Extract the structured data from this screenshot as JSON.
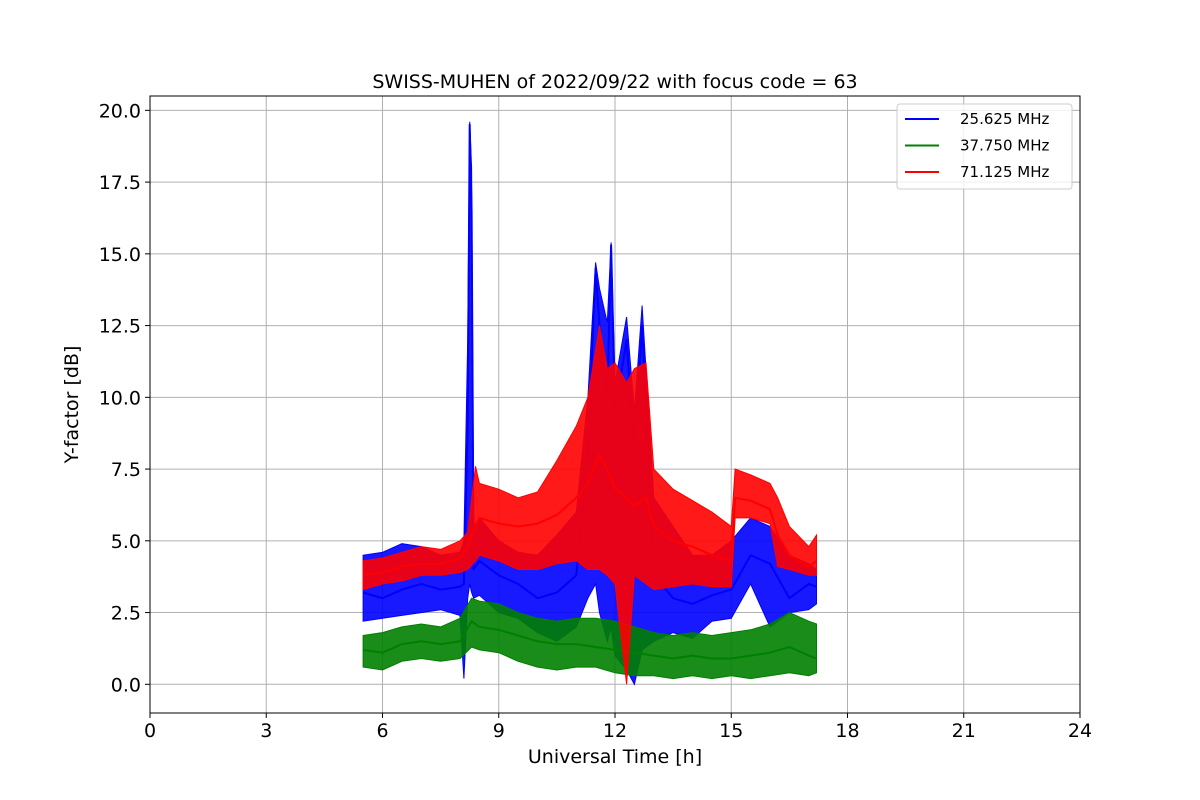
{
  "chart_data": {
    "type": "line",
    "title": "SWISS-MUHEN of 2022/09/22 with focus code = 63",
    "xlabel": "Universal Time [h]",
    "ylabel": "Y-factor [dB]",
    "xlim": [
      0,
      24
    ],
    "ylim": [
      -1,
      20.5
    ],
    "xticks": [
      0,
      3,
      6,
      9,
      12,
      15,
      18,
      21,
      24
    ],
    "xtick_labels": [
      "0",
      "3",
      "6",
      "9",
      "12",
      "15",
      "18",
      "21",
      "24"
    ],
    "yticks": [
      0.0,
      2.5,
      5.0,
      7.5,
      10.0,
      12.5,
      15.0,
      17.5,
      20.0
    ],
    "ytick_labels": [
      "0.0",
      "2.5",
      "5.0",
      "7.5",
      "10.0",
      "12.5",
      "15.0",
      "17.5",
      "20.0"
    ],
    "grid": true,
    "legend_position": "top-right",
    "series": [
      {
        "name": "25.625 MHz",
        "color": "#0000ff",
        "x": [
          5.5,
          6.0,
          6.5,
          7.0,
          7.5,
          8.0,
          8.1,
          8.2,
          8.25,
          8.3,
          8.35,
          8.5,
          9.0,
          9.5,
          10.0,
          10.5,
          11.0,
          11.3,
          11.5,
          11.6,
          11.8,
          11.9,
          12.0,
          12.3,
          12.5,
          12.7,
          13.0,
          13.5,
          14.0,
          14.5,
          15.0,
          15.5,
          16.0,
          16.5,
          17.0,
          17.2
        ],
        "y": [
          3.2,
          3.0,
          3.3,
          3.5,
          3.3,
          3.4,
          3.5,
          9.0,
          19.5,
          16.5,
          4.0,
          4.3,
          3.8,
          3.5,
          3.0,
          3.2,
          3.8,
          8.0,
          14.5,
          12.5,
          10.0,
          15.3,
          9.5,
          12.0,
          8.0,
          12.5,
          3.8,
          3.0,
          2.8,
          3.1,
          3.3,
          4.5,
          4.2,
          3.0,
          3.5,
          3.4
        ],
        "y_min": [
          2.2,
          2.3,
          2.4,
          2.5,
          2.6,
          2.4,
          0.2,
          3.0,
          3.5,
          3.2,
          3.0,
          3.1,
          2.5,
          2.3,
          1.8,
          1.5,
          2.0,
          3.0,
          3.5,
          2.5,
          1.5,
          2.0,
          1.0,
          0.5,
          0.0,
          1.2,
          1.5,
          1.8,
          1.6,
          2.2,
          2.3,
          3.5,
          2.0,
          2.5,
          2.6,
          2.8
        ],
        "y_max": [
          4.5,
          4.6,
          4.9,
          4.8,
          4.5,
          4.6,
          5.0,
          12.0,
          19.6,
          18.0,
          5.5,
          5.8,
          5.0,
          4.6,
          4.5,
          5.2,
          6.0,
          10.0,
          14.7,
          13.8,
          12.6,
          15.4,
          10.5,
          12.8,
          9.5,
          13.2,
          6.5,
          5.5,
          4.5,
          4.5,
          5.0,
          5.8,
          5.5,
          4.5,
          4.2,
          4.0
        ]
      },
      {
        "name": "37.750 MHz",
        "color": "#008000",
        "x": [
          5.5,
          6.0,
          6.5,
          7.0,
          7.5,
          8.0,
          8.3,
          8.5,
          9.0,
          9.5,
          10.0,
          10.5,
          11.0,
          11.5,
          12.0,
          12.5,
          13.0,
          13.5,
          14.0,
          14.5,
          15.0,
          15.5,
          16.0,
          16.5,
          17.0,
          17.2
        ],
        "y": [
          1.2,
          1.1,
          1.4,
          1.5,
          1.4,
          1.5,
          2.2,
          2.0,
          1.9,
          1.7,
          1.5,
          1.4,
          1.4,
          1.3,
          1.2,
          1.1,
          1.0,
          0.9,
          1.0,
          0.9,
          0.9,
          1.0,
          1.1,
          1.3,
          1.0,
          0.9
        ],
        "y_min": [
          0.6,
          0.5,
          0.8,
          0.9,
          0.8,
          0.9,
          1.3,
          1.2,
          1.1,
          0.8,
          0.6,
          0.5,
          0.6,
          0.6,
          0.4,
          0.3,
          0.3,
          0.2,
          0.3,
          0.2,
          0.3,
          0.2,
          0.3,
          0.4,
          0.3,
          0.4
        ],
        "y_max": [
          1.7,
          1.8,
          2.0,
          2.1,
          2.0,
          2.3,
          3.0,
          2.9,
          2.8,
          2.5,
          2.3,
          2.2,
          2.3,
          2.3,
          2.2,
          2.0,
          1.8,
          1.7,
          1.8,
          1.7,
          1.8,
          1.9,
          2.1,
          2.5,
          2.2,
          2.1
        ]
      },
      {
        "name": "71.125 MHz",
        "color": "#ff0000",
        "x": [
          5.5,
          6.0,
          6.5,
          7.0,
          7.5,
          8.0,
          8.2,
          8.4,
          8.5,
          9.0,
          9.5,
          10.0,
          10.5,
          11.0,
          11.3,
          11.6,
          11.8,
          12.0,
          12.3,
          12.5,
          12.8,
          13.0,
          13.5,
          14.0,
          14.5,
          15.0,
          15.1,
          15.5,
          16.0,
          16.2,
          16.5,
          17.0,
          17.2
        ],
        "y": [
          3.8,
          3.9,
          4.1,
          4.2,
          4.2,
          4.4,
          4.8,
          5.5,
          5.8,
          5.6,
          5.5,
          5.6,
          5.9,
          6.5,
          7.0,
          8.0,
          7.5,
          6.8,
          6.5,
          6.2,
          6.5,
          5.5,
          5.0,
          4.8,
          4.5,
          4.3,
          6.5,
          6.4,
          6.1,
          5.2,
          4.5,
          4.1,
          4.3
        ],
        "y_min": [
          3.3,
          3.5,
          3.6,
          3.8,
          3.8,
          3.9,
          4.0,
          4.3,
          4.5,
          4.3,
          4.0,
          4.0,
          4.2,
          4.3,
          4.0,
          4.0,
          3.8,
          3.5,
          0.0,
          3.8,
          3.5,
          3.3,
          3.4,
          3.5,
          3.4,
          3.4,
          5.8,
          5.8,
          5.6,
          4.1,
          4.0,
          3.8,
          3.8
        ],
        "y_max": [
          4.3,
          4.4,
          4.6,
          4.8,
          4.7,
          5.0,
          5.3,
          7.6,
          7.0,
          6.8,
          6.5,
          6.7,
          7.8,
          9.0,
          10.0,
          12.5,
          11.0,
          11.2,
          10.5,
          11.0,
          11.2,
          7.5,
          6.8,
          6.4,
          6.0,
          5.5,
          7.5,
          7.3,
          7.0,
          6.5,
          5.5,
          4.8,
          5.2
        ]
      }
    ]
  }
}
